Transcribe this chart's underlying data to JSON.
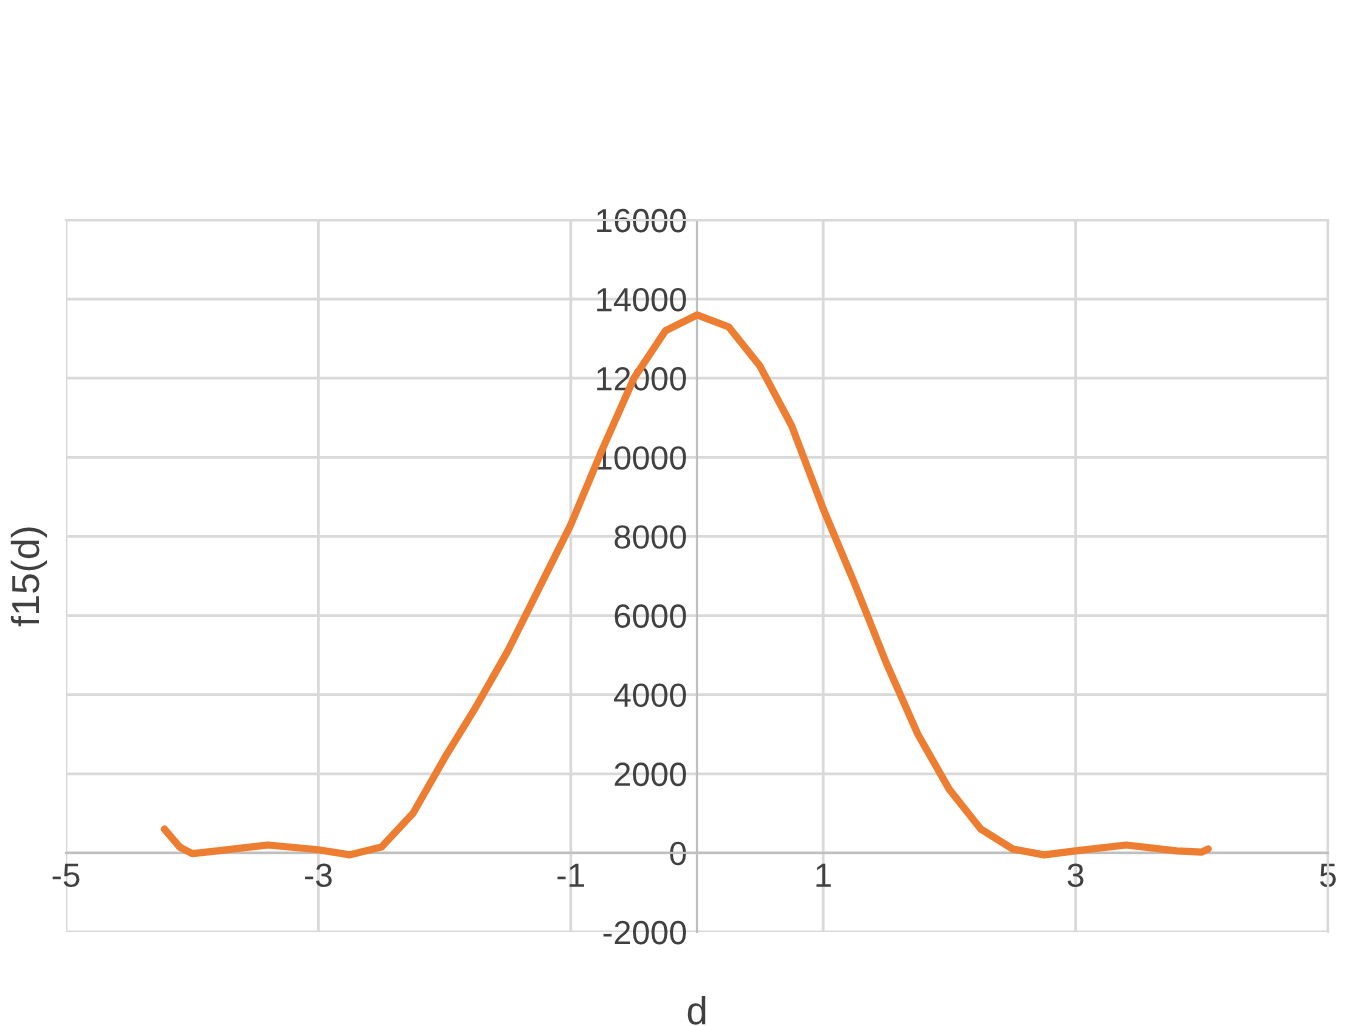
{
  "chart_data": {
    "type": "line",
    "xlabel": "d",
    "ylabel": "f15(d)",
    "series": [
      {
        "color": "#ed7d31",
        "x": [
          -4.22,
          -4.1,
          -4.0,
          -3.8,
          -3.4,
          -3.0,
          -2.75,
          -2.5,
          -2.25,
          -2.0,
          -1.75,
          -1.5,
          -1.25,
          -1.0,
          -0.75,
          -0.5,
          -0.25,
          0,
          0.25,
          0.5,
          0.75,
          1.0,
          1.25,
          1.5,
          1.75,
          2.0,
          2.25,
          2.5,
          2.75,
          3.0,
          3.4,
          3.8,
          4.0,
          4.05
        ],
        "values": [
          600,
          150,
          -20,
          50,
          200,
          80,
          -50,
          150,
          1000,
          2400,
          3700,
          5100,
          6700,
          8300,
          10200,
          12000,
          13200,
          13600,
          13300,
          12300,
          10800,
          8700,
          6800,
          4800,
          3000,
          1600,
          600,
          100,
          -50,
          50,
          200,
          50,
          20,
          100
        ]
      }
    ],
    "xlim": [
      -5,
      5
    ],
    "xticks": [
      -5,
      -3,
      -1,
      1,
      3,
      5
    ],
    "ylim": [
      -2000,
      16000
    ],
    "yticks": [
      -2000,
      0,
      2000,
      4000,
      6000,
      8000,
      10000,
      12000,
      14000,
      16000
    ],
    "grid": true,
    "marker": "none",
    "line_style": "solid"
  }
}
